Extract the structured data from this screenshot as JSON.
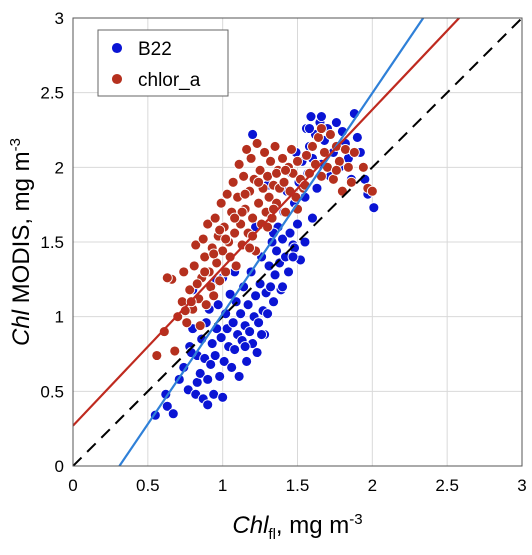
{
  "chart_data": {
    "type": "scatter",
    "title": "",
    "xlabel": {
      "italic": "Chl",
      "sub": "fl",
      "rest": ", mg m",
      "sup": "-3"
    },
    "ylabel": {
      "italic": "Chl",
      "rest": " MODIS, mg m",
      "sup": "-3"
    },
    "xlim": [
      0,
      3
    ],
    "ylim": [
      0,
      3
    ],
    "xticks": [
      "0",
      "0.5",
      "1",
      "1.5",
      "2",
      "2.5",
      "3"
    ],
    "yticks": [
      "0",
      "0.5",
      "1",
      "1.5",
      "2",
      "2.5",
      "3"
    ],
    "xtick_values": [
      0,
      0.5,
      1,
      1.5,
      2,
      2.5,
      3
    ],
    "ytick_values": [
      0,
      0.5,
      1,
      1.5,
      2,
      2.5,
      3
    ],
    "grid": true,
    "legend_position": "top-left",
    "series": [
      {
        "name": "B22",
        "color": "#0a14d4",
        "points": [
          [
            0.55,
            0.34
          ],
          [
            0.62,
            0.48
          ],
          [
            0.63,
            0.4
          ],
          [
            0.67,
            0.35
          ],
          [
            0.71,
            0.58
          ],
          [
            0.74,
            0.66
          ],
          [
            0.77,
            0.51
          ],
          [
            0.78,
            0.8
          ],
          [
            0.8,
            0.92
          ],
          [
            0.82,
            0.48
          ],
          [
            0.83,
            0.56
          ],
          [
            0.83,
            0.74
          ],
          [
            0.85,
            0.62
          ],
          [
            0.86,
            0.85
          ],
          [
            0.87,
            0.45
          ],
          [
            0.88,
            0.72
          ],
          [
            0.89,
            0.96
          ],
          [
            0.9,
            0.41
          ],
          [
            0.9,
            0.58
          ],
          [
            0.91,
            1.05
          ],
          [
            0.92,
            0.68
          ],
          [
            0.93,
            0.82
          ],
          [
            0.94,
            0.48
          ],
          [
            0.95,
            0.74
          ],
          [
            0.96,
            0.92
          ],
          [
            0.97,
            1.08
          ],
          [
            0.98,
            0.6
          ],
          [
            0.99,
            0.86
          ],
          [
            1.0,
            0.46
          ],
          [
            1.01,
            0.7
          ],
          [
            1.02,
            1.02
          ],
          [
            1.03,
            0.92
          ],
          [
            1.04,
            0.8
          ],
          [
            1.05,
            1.15
          ],
          [
            1.06,
            0.66
          ],
          [
            1.07,
            0.96
          ],
          [
            1.08,
            0.78
          ],
          [
            1.09,
            1.1
          ],
          [
            1.1,
            0.88
          ],
          [
            1.11,
            0.6
          ],
          [
            1.12,
            1.02
          ],
          [
            1.13,
            0.84
          ],
          [
            1.14,
            1.2
          ],
          [
            1.15,
            0.94
          ],
          [
            1.16,
            0.7
          ],
          [
            1.17,
            1.08
          ],
          [
            1.18,
            0.9
          ],
          [
            1.19,
            1.3
          ],
          [
            1.2,
            0.82
          ],
          [
            1.21,
            1.0
          ],
          [
            1.22,
            1.14
          ],
          [
            1.23,
            0.76
          ],
          [
            1.24,
            0.96
          ],
          [
            1.25,
            1.22
          ],
          [
            1.26,
            1.4
          ],
          [
            1.27,
            1.04
          ],
          [
            1.28,
            0.88
          ],
          [
            1.29,
            1.16
          ],
          [
            1.3,
            1.02
          ],
          [
            1.31,
            1.34
          ],
          [
            1.32,
            1.2
          ],
          [
            1.33,
            1.5
          ],
          [
            1.34,
            1.1
          ],
          [
            1.35,
            1.28
          ],
          [
            1.36,
            1.44
          ],
          [
            1.37,
            1.6
          ],
          [
            1.38,
            1.36
          ],
          [
            1.39,
            1.18
          ],
          [
            1.4,
            1.52
          ],
          [
            1.41,
            1.7
          ],
          [
            1.42,
            1.4
          ],
          [
            1.43,
            1.84
          ],
          [
            1.44,
            1.3
          ],
          [
            1.45,
            1.56
          ],
          [
            1.46,
            1.96
          ],
          [
            1.47,
            1.48
          ],
          [
            1.48,
            1.76
          ],
          [
            1.49,
            2.1
          ],
          [
            1.5,
            1.62
          ],
          [
            1.51,
            1.9
          ],
          [
            1.52,
            1.38
          ],
          [
            1.53,
            2.04
          ],
          [
            1.55,
            1.8
          ],
          [
            1.56,
            2.26
          ],
          [
            1.57,
            1.96
          ],
          [
            1.58,
            2.14
          ],
          [
            1.59,
            2.34
          ],
          [
            1.6,
            2.06
          ],
          [
            1.62,
            2.22
          ],
          [
            1.63,
            1.86
          ],
          [
            1.65,
            2.3
          ],
          [
            1.66,
            2.02
          ],
          [
            1.68,
            2.18
          ],
          [
            1.7,
            2.26
          ],
          [
            1.72,
            1.94
          ],
          [
            1.74,
            2.1
          ],
          [
            1.76,
            2.3
          ],
          [
            1.78,
            2.0
          ],
          [
            1.8,
            2.24
          ],
          [
            1.82,
            2.16
          ],
          [
            1.84,
            2.06
          ],
          [
            1.86,
            1.92
          ],
          [
            1.88,
            2.36
          ],
          [
            1.9,
            2.2
          ],
          [
            1.92,
            2.1
          ],
          [
            1.95,
            1.92
          ],
          [
            1.97,
            1.82
          ],
          [
            2.01,
            1.73
          ],
          [
            1.58,
            2.26
          ],
          [
            1.26,
            0.88
          ],
          [
            1.15,
            0.8
          ],
          [
            1.22,
            1.6
          ],
          [
            1.48,
            1.46
          ],
          [
            1.6,
            1.66
          ],
          [
            1.66,
            2.34
          ],
          [
            1.34,
            1.56
          ],
          [
            1.08,
            1.3
          ],
          [
            0.96,
            1.24
          ],
          [
            1.0,
            1.26
          ],
          [
            0.92,
            1.2
          ],
          [
            1.2,
            2.22
          ],
          [
            1.3,
            1.88
          ],
          [
            1.55,
            1.5
          ],
          [
            1.47,
            1.4
          ],
          [
            1.4,
            1.2
          ],
          [
            0.8,
            1.18
          ],
          [
            0.79,
            0.76
          ]
        ]
      },
      {
        "name": "chlor_a",
        "color": "#b5301e",
        "points": [
          [
            0.56,
            0.74
          ],
          [
            0.61,
            0.9
          ],
          [
            0.66,
            1.25
          ],
          [
            0.68,
            0.77
          ],
          [
            0.7,
            1.0
          ],
          [
            0.73,
            1.1
          ],
          [
            0.74,
            1.3
          ],
          [
            0.76,
            0.96
          ],
          [
            0.78,
            1.18
          ],
          [
            0.8,
            1.05
          ],
          [
            0.81,
            1.34
          ],
          [
            0.82,
            1.48
          ],
          [
            0.84,
            1.12
          ],
          [
            0.85,
            0.94
          ],
          [
            0.86,
            1.26
          ],
          [
            0.87,
            1.52
          ],
          [
            0.88,
            1.4
          ],
          [
            0.89,
            1.08
          ],
          [
            0.9,
            1.62
          ],
          [
            0.91,
            1.3
          ],
          [
            0.92,
            1.2
          ],
          [
            0.93,
            1.46
          ],
          [
            0.94,
            1.14
          ],
          [
            0.95,
            1.66
          ],
          [
            0.96,
            1.36
          ],
          [
            0.97,
            1.54
          ],
          [
            0.98,
            1.24
          ],
          [
            0.99,
            1.76
          ],
          [
            1.0,
            1.44
          ],
          [
            1.01,
            1.6
          ],
          [
            1.02,
            1.3
          ],
          [
            1.03,
            1.82
          ],
          [
            1.04,
            1.5
          ],
          [
            1.05,
            1.4
          ],
          [
            1.06,
            1.7
          ],
          [
            1.07,
            1.9
          ],
          [
            1.08,
            1.56
          ],
          [
            1.09,
            1.34
          ],
          [
            1.1,
            1.8
          ],
          [
            1.11,
            2.02
          ],
          [
            1.12,
            1.62
          ],
          [
            1.13,
            1.48
          ],
          [
            1.14,
            1.94
          ],
          [
            1.15,
            1.72
          ],
          [
            1.16,
            2.12
          ],
          [
            1.17,
            1.56
          ],
          [
            1.18,
            1.84
          ],
          [
            1.19,
            2.06
          ],
          [
            1.2,
            1.66
          ],
          [
            1.21,
            1.92
          ],
          [
            1.22,
            1.44
          ],
          [
            1.23,
            2.16
          ],
          [
            1.24,
            1.76
          ],
          [
            1.25,
            1.98
          ],
          [
            1.26,
            1.62
          ],
          [
            1.27,
            1.86
          ],
          [
            1.28,
            2.1
          ],
          [
            1.29,
            1.7
          ],
          [
            1.3,
            1.94
          ],
          [
            1.31,
            1.8
          ],
          [
            1.32,
            2.04
          ],
          [
            1.33,
            1.66
          ],
          [
            1.34,
            1.88
          ],
          [
            1.35,
            2.14
          ],
          [
            1.36,
            1.76
          ],
          [
            1.37,
            1.98
          ],
          [
            1.38,
            1.86
          ],
          [
            1.4,
            2.06
          ],
          [
            1.41,
            1.9
          ],
          [
            1.42,
            1.7
          ],
          [
            1.44,
            2.0
          ],
          [
            1.45,
            1.84
          ],
          [
            1.47,
            1.96
          ],
          [
            1.49,
            1.8
          ],
          [
            1.5,
            2.04
          ],
          [
            1.52,
            1.92
          ],
          [
            1.54,
            1.86
          ],
          [
            1.56,
            2.08
          ],
          [
            1.58,
            1.96
          ],
          [
            1.6,
            2.14
          ],
          [
            1.62,
            2.02
          ],
          [
            1.64,
            2.2
          ],
          [
            1.66,
            1.94
          ],
          [
            1.68,
            2.1
          ],
          [
            1.7,
            2.0
          ],
          [
            1.72,
            2.22
          ],
          [
            1.74,
            1.92
          ],
          [
            1.76,
            2.14
          ],
          [
            1.78,
            2.04
          ],
          [
            1.8,
            1.84
          ],
          [
            1.82,
            2.12
          ],
          [
            1.84,
            2.0
          ],
          [
            1.86,
            1.9
          ],
          [
            1.88,
            2.1
          ],
          [
            1.94,
            2.0
          ],
          [
            1.97,
            1.86
          ],
          [
            2.0,
            1.84
          ],
          [
            0.63,
            1.26
          ],
          [
            0.75,
            1.04
          ],
          [
            0.83,
            1.22
          ],
          [
            0.94,
            1.42
          ],
          [
            1.02,
            1.52
          ],
          [
            1.13,
            1.7
          ],
          [
            1.18,
            1.46
          ],
          [
            1.24,
            1.9
          ],
          [
            1.3,
            1.6
          ],
          [
            1.36,
            1.96
          ],
          [
            1.46,
            2.12
          ],
          [
            1.55,
            1.88
          ],
          [
            1.66,
            2.26
          ],
          [
            1.76,
            1.98
          ],
          [
            1.5,
            1.72
          ],
          [
            1.34,
            1.72
          ],
          [
            1.2,
            1.54
          ],
          [
            1.08,
            1.66
          ],
          [
            0.98,
            1.58
          ],
          [
            0.88,
            1.3
          ],
          [
            0.79,
            1.1
          ],
          [
            1.15,
            1.82
          ],
          [
            1.42,
            1.98
          ]
        ]
      }
    ],
    "lines": [
      {
        "style": "dashed",
        "color": "#000000",
        "from": [
          0,
          0
        ],
        "to": [
          3,
          3
        ]
      },
      {
        "style": "solid",
        "color": "#2f80d8",
        "from": [
          0.31,
          0
        ],
        "to": [
          2.34,
          3
        ]
      },
      {
        "style": "solid",
        "color": "#bf2a1f",
        "from": [
          0,
          0.27
        ],
        "to": [
          2.58,
          3
        ]
      }
    ]
  }
}
